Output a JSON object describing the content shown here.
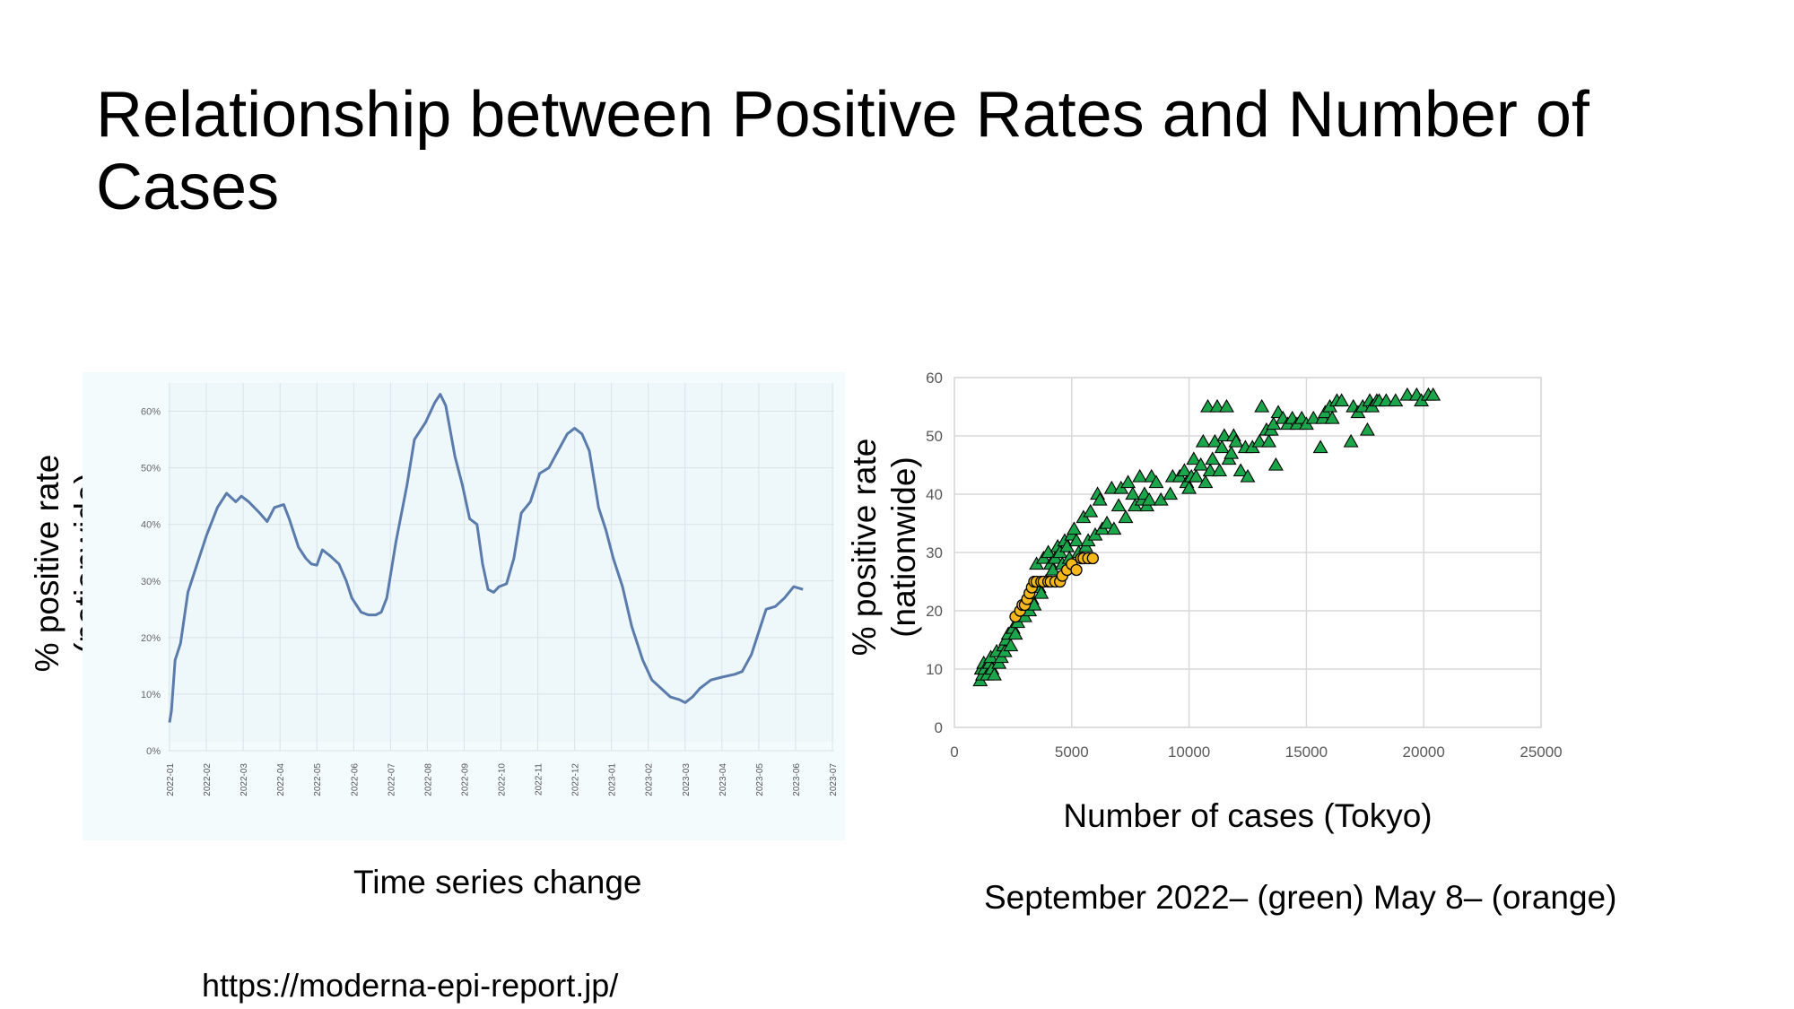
{
  "slide": {
    "title": "Relationship between Positive Rates and Number of Cases",
    "left_ylabel_line1": "% positive rate",
    "left_ylabel_line2": "(nationwide)",
    "left_caption": "Time series change",
    "right_ylabel_line1": "% positive rate",
    "right_ylabel_line2": "(nationwide)",
    "right_caption": "September 2022– (green) May 8– (orange)",
    "source": "https://moderna-epi-report.jp/"
  },
  "chart_data": [
    {
      "type": "line",
      "background": "#f4fbfd",
      "line_color": "#5a7bab",
      "grid": true,
      "ylim": [
        0,
        65
      ],
      "yticks": [
        0,
        10,
        20,
        30,
        40,
        50,
        60
      ],
      "yticklabels": [
        "0%",
        "10%",
        "20%",
        "30%",
        "40%",
        "50%",
        "60%"
      ],
      "xticklabels": [
        "2022-01",
        "2022-02",
        "2022-03",
        "2022-04",
        "2022-05",
        "2022-06",
        "2022-07",
        "2022-08",
        "2022-09",
        "2022-10",
        "2022-11",
        "2022-12",
        "2023-01",
        "2023-02",
        "2023-03",
        "2023-04",
        "2023-05",
        "2023-06",
        "2023-07"
      ],
      "series": [
        {
          "values": [
            [
              0,
              5
            ],
            [
              0.05,
              7
            ],
            [
              0.15,
              16
            ],
            [
              0.3,
              19
            ],
            [
              0.5,
              28
            ],
            [
              0.7,
              32
            ],
            [
              1.0,
              38
            ],
            [
              1.3,
              43
            ],
            [
              1.55,
              45.5
            ],
            [
              1.8,
              44
            ],
            [
              1.95,
              45
            ],
            [
              2.15,
              44
            ],
            [
              2.45,
              42
            ],
            [
              2.65,
              40.5
            ],
            [
              2.85,
              43
            ],
            [
              3.1,
              43.5
            ],
            [
              3.25,
              41
            ],
            [
              3.5,
              36
            ],
            [
              3.7,
              34
            ],
            [
              3.85,
              33
            ],
            [
              4.0,
              32.8
            ],
            [
              4.15,
              35.5
            ],
            [
              4.35,
              34.5
            ],
            [
              4.6,
              33
            ],
            [
              4.8,
              30
            ],
            [
              4.95,
              27
            ],
            [
              5.2,
              24.5
            ],
            [
              5.4,
              24
            ],
            [
              5.6,
              24
            ],
            [
              5.75,
              24.5
            ],
            [
              5.9,
              27
            ],
            [
              6.15,
              37
            ],
            [
              6.45,
              47
            ],
            [
              6.65,
              55
            ],
            [
              6.95,
              58
            ],
            [
              7.2,
              61.5
            ],
            [
              7.35,
              63
            ],
            [
              7.5,
              61
            ],
            [
              7.75,
              52
            ],
            [
              7.95,
              47
            ],
            [
              8.15,
              41
            ],
            [
              8.35,
              40
            ],
            [
              8.5,
              33
            ],
            [
              8.65,
              28.5
            ],
            [
              8.8,
              28
            ],
            [
              8.95,
              29
            ],
            [
              9.15,
              29.5
            ],
            [
              9.35,
              34
            ],
            [
              9.55,
              42
            ],
            [
              9.8,
              44
            ],
            [
              10.05,
              49
            ],
            [
              10.3,
              50
            ],
            [
              10.55,
              53
            ],
            [
              10.8,
              56
            ],
            [
              11.0,
              57
            ],
            [
              11.2,
              56
            ],
            [
              11.4,
              53
            ],
            [
              11.65,
              43
            ],
            [
              11.85,
              39
            ],
            [
              12.05,
              34
            ],
            [
              12.3,
              29
            ],
            [
              12.55,
              22
            ],
            [
              12.85,
              16
            ],
            [
              13.1,
              12.5
            ],
            [
              13.35,
              11
            ],
            [
              13.6,
              9.5
            ],
            [
              13.85,
              9
            ],
            [
              14.0,
              8.5
            ],
            [
              14.2,
              9.5
            ],
            [
              14.4,
              11
            ],
            [
              14.7,
              12.5
            ],
            [
              15.0,
              13
            ],
            [
              15.35,
              13.5
            ],
            [
              15.55,
              14
            ],
            [
              15.8,
              17
            ],
            [
              16.0,
              21
            ],
            [
              16.2,
              25
            ],
            [
              16.45,
              25.5
            ],
            [
              16.7,
              27
            ],
            [
              16.95,
              29
            ],
            [
              17.2,
              28.5
            ]
          ]
        }
      ]
    },
    {
      "type": "scatter",
      "xlim": [
        0,
        25000
      ],
      "ylim": [
        0,
        60
      ],
      "xticks": [
        0,
        5000,
        10000,
        15000,
        20000,
        25000
      ],
      "yticks": [
        0,
        10,
        20,
        30,
        40,
        50,
        60
      ],
      "xlabel": "Number of cases (Tokyo)",
      "ylabel": "% positive rate (nationwide)",
      "grid": true,
      "series": [
        {
          "marker": "triangle",
          "color": "#1ca64b",
          "points": [
            [
              1100,
              8
            ],
            [
              1150,
              10
            ],
            [
              1200,
              9
            ],
            [
              1250,
              11
            ],
            [
              1300,
              10
            ],
            [
              1400,
              9
            ],
            [
              1500,
              11
            ],
            [
              1550,
              12
            ],
            [
              1600,
              10
            ],
            [
              1700,
              9
            ],
            [
              1800,
              13
            ],
            [
              1900,
              11
            ],
            [
              2000,
              12
            ],
            [
              2100,
              14
            ],
            [
              2150,
              13
            ],
            [
              2200,
              15
            ],
            [
              2300,
              16
            ],
            [
              2400,
              14
            ],
            [
              2500,
              17
            ],
            [
              2600,
              16
            ],
            [
              2700,
              18
            ],
            [
              2900,
              20
            ],
            [
              3000,
              19
            ],
            [
              3100,
              21
            ],
            [
              3200,
              20
            ],
            [
              3300,
              22
            ],
            [
              3400,
              21
            ],
            [
              3500,
              28
            ],
            [
              3600,
              24
            ],
            [
              3700,
              23
            ],
            [
              3800,
              29
            ],
            [
              3900,
              25
            ],
            [
              4000,
              30
            ],
            [
              4100,
              28
            ],
            [
              4200,
              27
            ],
            [
              4300,
              29
            ],
            [
              4400,
              31
            ],
            [
              4500,
              30
            ],
            [
              4600,
              28
            ],
            [
              4700,
              32
            ],
            [
              4800,
              31
            ],
            [
              4900,
              29
            ],
            [
              5000,
              33
            ],
            [
              5100,
              34
            ],
            [
              5200,
              32
            ],
            [
              5300,
              30
            ],
            [
              5500,
              36
            ],
            [
              5600,
              31
            ],
            [
              5700,
              32
            ],
            [
              5800,
              37
            ],
            [
              6000,
              33
            ],
            [
              6100,
              40
            ],
            [
              6200,
              39
            ],
            [
              6300,
              34
            ],
            [
              6500,
              35
            ],
            [
              6700,
              41
            ],
            [
              6800,
              34
            ],
            [
              7000,
              38
            ],
            [
              7100,
              41
            ],
            [
              7300,
              36
            ],
            [
              7400,
              42
            ],
            [
              7600,
              40
            ],
            [
              7700,
              38
            ],
            [
              7900,
              43
            ],
            [
              8000,
              39
            ],
            [
              8100,
              40
            ],
            [
              8200,
              38
            ],
            [
              8300,
              39
            ],
            [
              8400,
              43
            ],
            [
              8600,
              42
            ],
            [
              8800,
              39
            ],
            [
              9200,
              40
            ],
            [
              9300,
              43
            ],
            [
              9600,
              43
            ],
            [
              9800,
              44
            ],
            [
              9900,
              42
            ],
            [
              10000,
              41
            ],
            [
              10100,
              43
            ],
            [
              10200,
              46
            ],
            [
              10300,
              43
            ],
            [
              10500,
              45
            ],
            [
              10600,
              49
            ],
            [
              10700,
              42
            ],
            [
              10800,
              55
            ],
            [
              10900,
              44
            ],
            [
              11000,
              46
            ],
            [
              11100,
              49
            ],
            [
              11200,
              55
            ],
            [
              11300,
              44
            ],
            [
              11400,
              48
            ],
            [
              11500,
              50
            ],
            [
              11600,
              55
            ],
            [
              11700,
              46
            ],
            [
              11800,
              47
            ],
            [
              11900,
              50
            ],
            [
              12000,
              49
            ],
            [
              12200,
              44
            ],
            [
              12400,
              48
            ],
            [
              12500,
              43
            ],
            [
              12700,
              48
            ],
            [
              13000,
              49
            ],
            [
              13100,
              55
            ],
            [
              13300,
              51
            ],
            [
              13400,
              49
            ],
            [
              13500,
              51
            ],
            [
              13600,
              52
            ],
            [
              13700,
              45
            ],
            [
              13800,
              54
            ],
            [
              14000,
              53
            ],
            [
              14200,
              52
            ],
            [
              14400,
              53
            ],
            [
              14600,
              52
            ],
            [
              14800,
              53
            ],
            [
              15000,
              52
            ],
            [
              15300,
              53
            ],
            [
              15600,
              48
            ],
            [
              15700,
              53
            ],
            [
              15800,
              54
            ],
            [
              16000,
              55
            ],
            [
              16100,
              53
            ],
            [
              16300,
              56
            ],
            [
              16500,
              56
            ],
            [
              16900,
              49
            ],
            [
              17000,
              55
            ],
            [
              17200,
              54
            ],
            [
              17400,
              55
            ],
            [
              17600,
              51
            ],
            [
              17700,
              56
            ],
            [
              17800,
              55
            ],
            [
              18000,
              56
            ],
            [
              18100,
              56
            ],
            [
              18400,
              56
            ],
            [
              18800,
              56
            ],
            [
              19300,
              57
            ],
            [
              19700,
              57
            ],
            [
              19900,
              56
            ],
            [
              20200,
              57
            ],
            [
              20400,
              57
            ]
          ]
        },
        {
          "marker": "circle",
          "color": "#f6b71a",
          "points": [
            [
              2600,
              19
            ],
            [
              2800,
              20
            ],
            [
              2900,
              21
            ],
            [
              3000,
              21
            ],
            [
              3100,
              22
            ],
            [
              3200,
              23
            ],
            [
              3300,
              24
            ],
            [
              3400,
              25
            ],
            [
              3500,
              25
            ],
            [
              3700,
              25
            ],
            [
              3800,
              25
            ],
            [
              4000,
              25
            ],
            [
              4100,
              25
            ],
            [
              4300,
              25
            ],
            [
              4500,
              25
            ],
            [
              4600,
              26
            ],
            [
              4800,
              27
            ],
            [
              5000,
              28
            ],
            [
              5200,
              27
            ],
            [
              5400,
              29
            ],
            [
              5500,
              29
            ],
            [
              5700,
              29
            ],
            [
              5900,
              29
            ]
          ]
        }
      ]
    }
  ]
}
